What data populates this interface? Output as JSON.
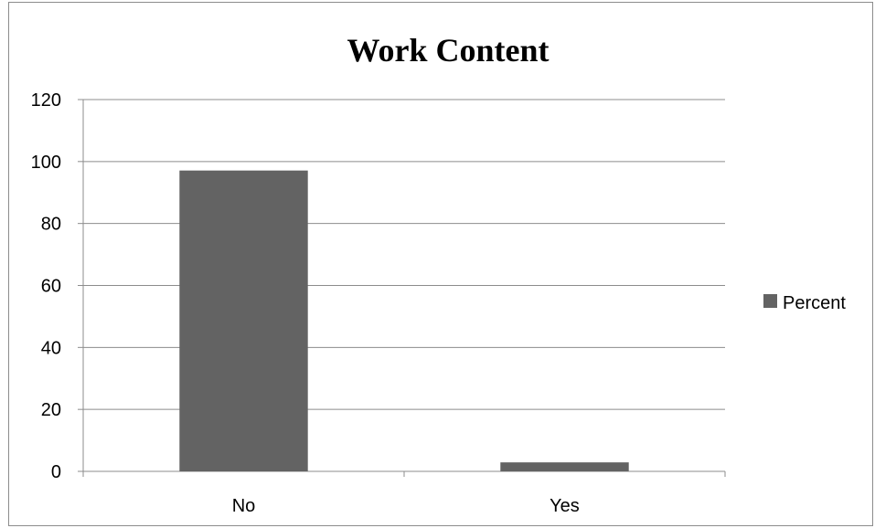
{
  "chart_data": {
    "type": "bar",
    "title": "Work Content",
    "categories": [
      "No",
      "Yes"
    ],
    "series": [
      {
        "name": "Percent",
        "values": [
          97.1,
          2.9
        ]
      }
    ],
    "ylim": [
      0,
      120
    ],
    "yticks": [
      0,
      20,
      40,
      60,
      80,
      100,
      120
    ],
    "grid": true,
    "legend": "right",
    "colors": {
      "bar": "#636363",
      "grid": "#8c8c8c",
      "axis": "#8c8c8c"
    }
  }
}
